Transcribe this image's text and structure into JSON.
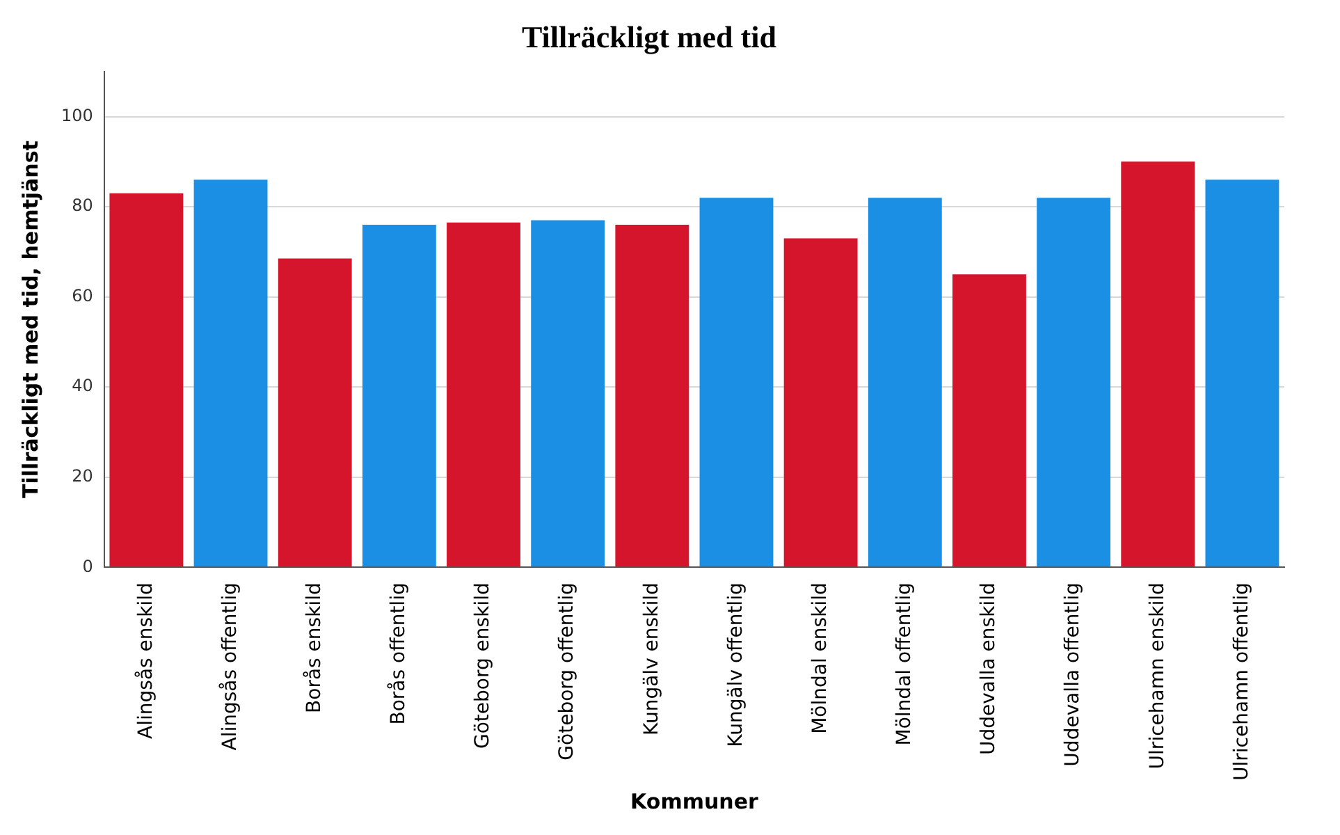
{
  "chart_data": {
    "type": "bar",
    "title": "Tillräckligt med tid",
    "xlabel": "Kommuner",
    "ylabel": "Tillräckligt med tid, hemtjänst",
    "categories": [
      "Alingsås enskild",
      "Alingsås offentlig",
      "Borås enskild",
      "Borås offentlig",
      "Göteborg enskild",
      "Göteborg offentlig",
      "Kungälv enskild",
      "Kungälv offentlig",
      "Mölndal enskild",
      "Mölndal offentlig",
      "Uddevalla enskild",
      "Uddevalla offentlig",
      "Ulricehamn enskild",
      "Ulricehamn offentlig"
    ],
    "values": [
      83,
      86,
      68.5,
      76,
      76.5,
      77,
      76,
      82,
      73,
      82,
      65,
      82,
      90,
      86
    ],
    "colors": [
      "#d5152b",
      "#1b8fe4",
      "#d5152b",
      "#1b8fe4",
      "#d5152b",
      "#1b8fe4",
      "#d5152b",
      "#1b8fe4",
      "#d5152b",
      "#1b8fe4",
      "#d5152b",
      "#1b8fe4",
      "#d5152b",
      "#1b8fe4"
    ],
    "ylim": [
      0,
      110
    ],
    "yticks": [
      0,
      20,
      40,
      60,
      80,
      100
    ],
    "grid": "y",
    "legend": false
  }
}
